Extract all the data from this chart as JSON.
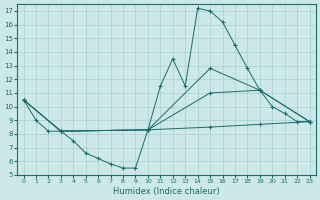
{
  "xlabel": "Humidex (Indice chaleur)",
  "bg_color": "#cce8e8",
  "line_color": "#1a6b6b",
  "grid_color": "#aacfcf",
  "xlim": [
    -0.5,
    23.5
  ],
  "ylim": [
    5,
    17.5
  ],
  "yticks": [
    5,
    6,
    7,
    8,
    9,
    10,
    11,
    12,
    13,
    14,
    15,
    16,
    17
  ],
  "xticks": [
    0,
    1,
    2,
    3,
    4,
    5,
    6,
    7,
    8,
    9,
    10,
    11,
    12,
    13,
    14,
    15,
    16,
    17,
    18,
    19,
    20,
    21,
    22,
    23
  ],
  "line1_x": [
    0,
    1,
    2,
    3,
    4,
    5,
    6,
    7,
    8,
    9,
    10,
    11,
    12,
    13,
    14,
    15,
    16,
    17,
    18,
    19,
    20,
    21,
    22,
    23
  ],
  "line1_y": [
    10.5,
    9.0,
    8.2,
    8.2,
    7.5,
    6.6,
    6.2,
    5.8,
    5.5,
    5.5,
    8.3,
    11.5,
    13.5,
    11.5,
    17.2,
    17.0,
    16.2,
    14.5,
    12.8,
    11.2,
    10.0,
    9.5,
    8.9,
    8.9
  ],
  "line2_x": [
    0,
    3,
    10,
    15,
    19,
    23
  ],
  "line2_y": [
    10.5,
    8.2,
    8.3,
    11.0,
    11.2,
    8.9
  ],
  "line3_x": [
    0,
    3,
    10,
    15,
    19,
    23
  ],
  "line3_y": [
    10.5,
    8.2,
    8.3,
    12.8,
    11.2,
    8.9
  ],
  "line4_x": [
    0,
    3,
    10,
    15,
    19,
    23
  ],
  "line4_y": [
    10.5,
    8.2,
    8.3,
    8.5,
    8.7,
    8.9
  ]
}
